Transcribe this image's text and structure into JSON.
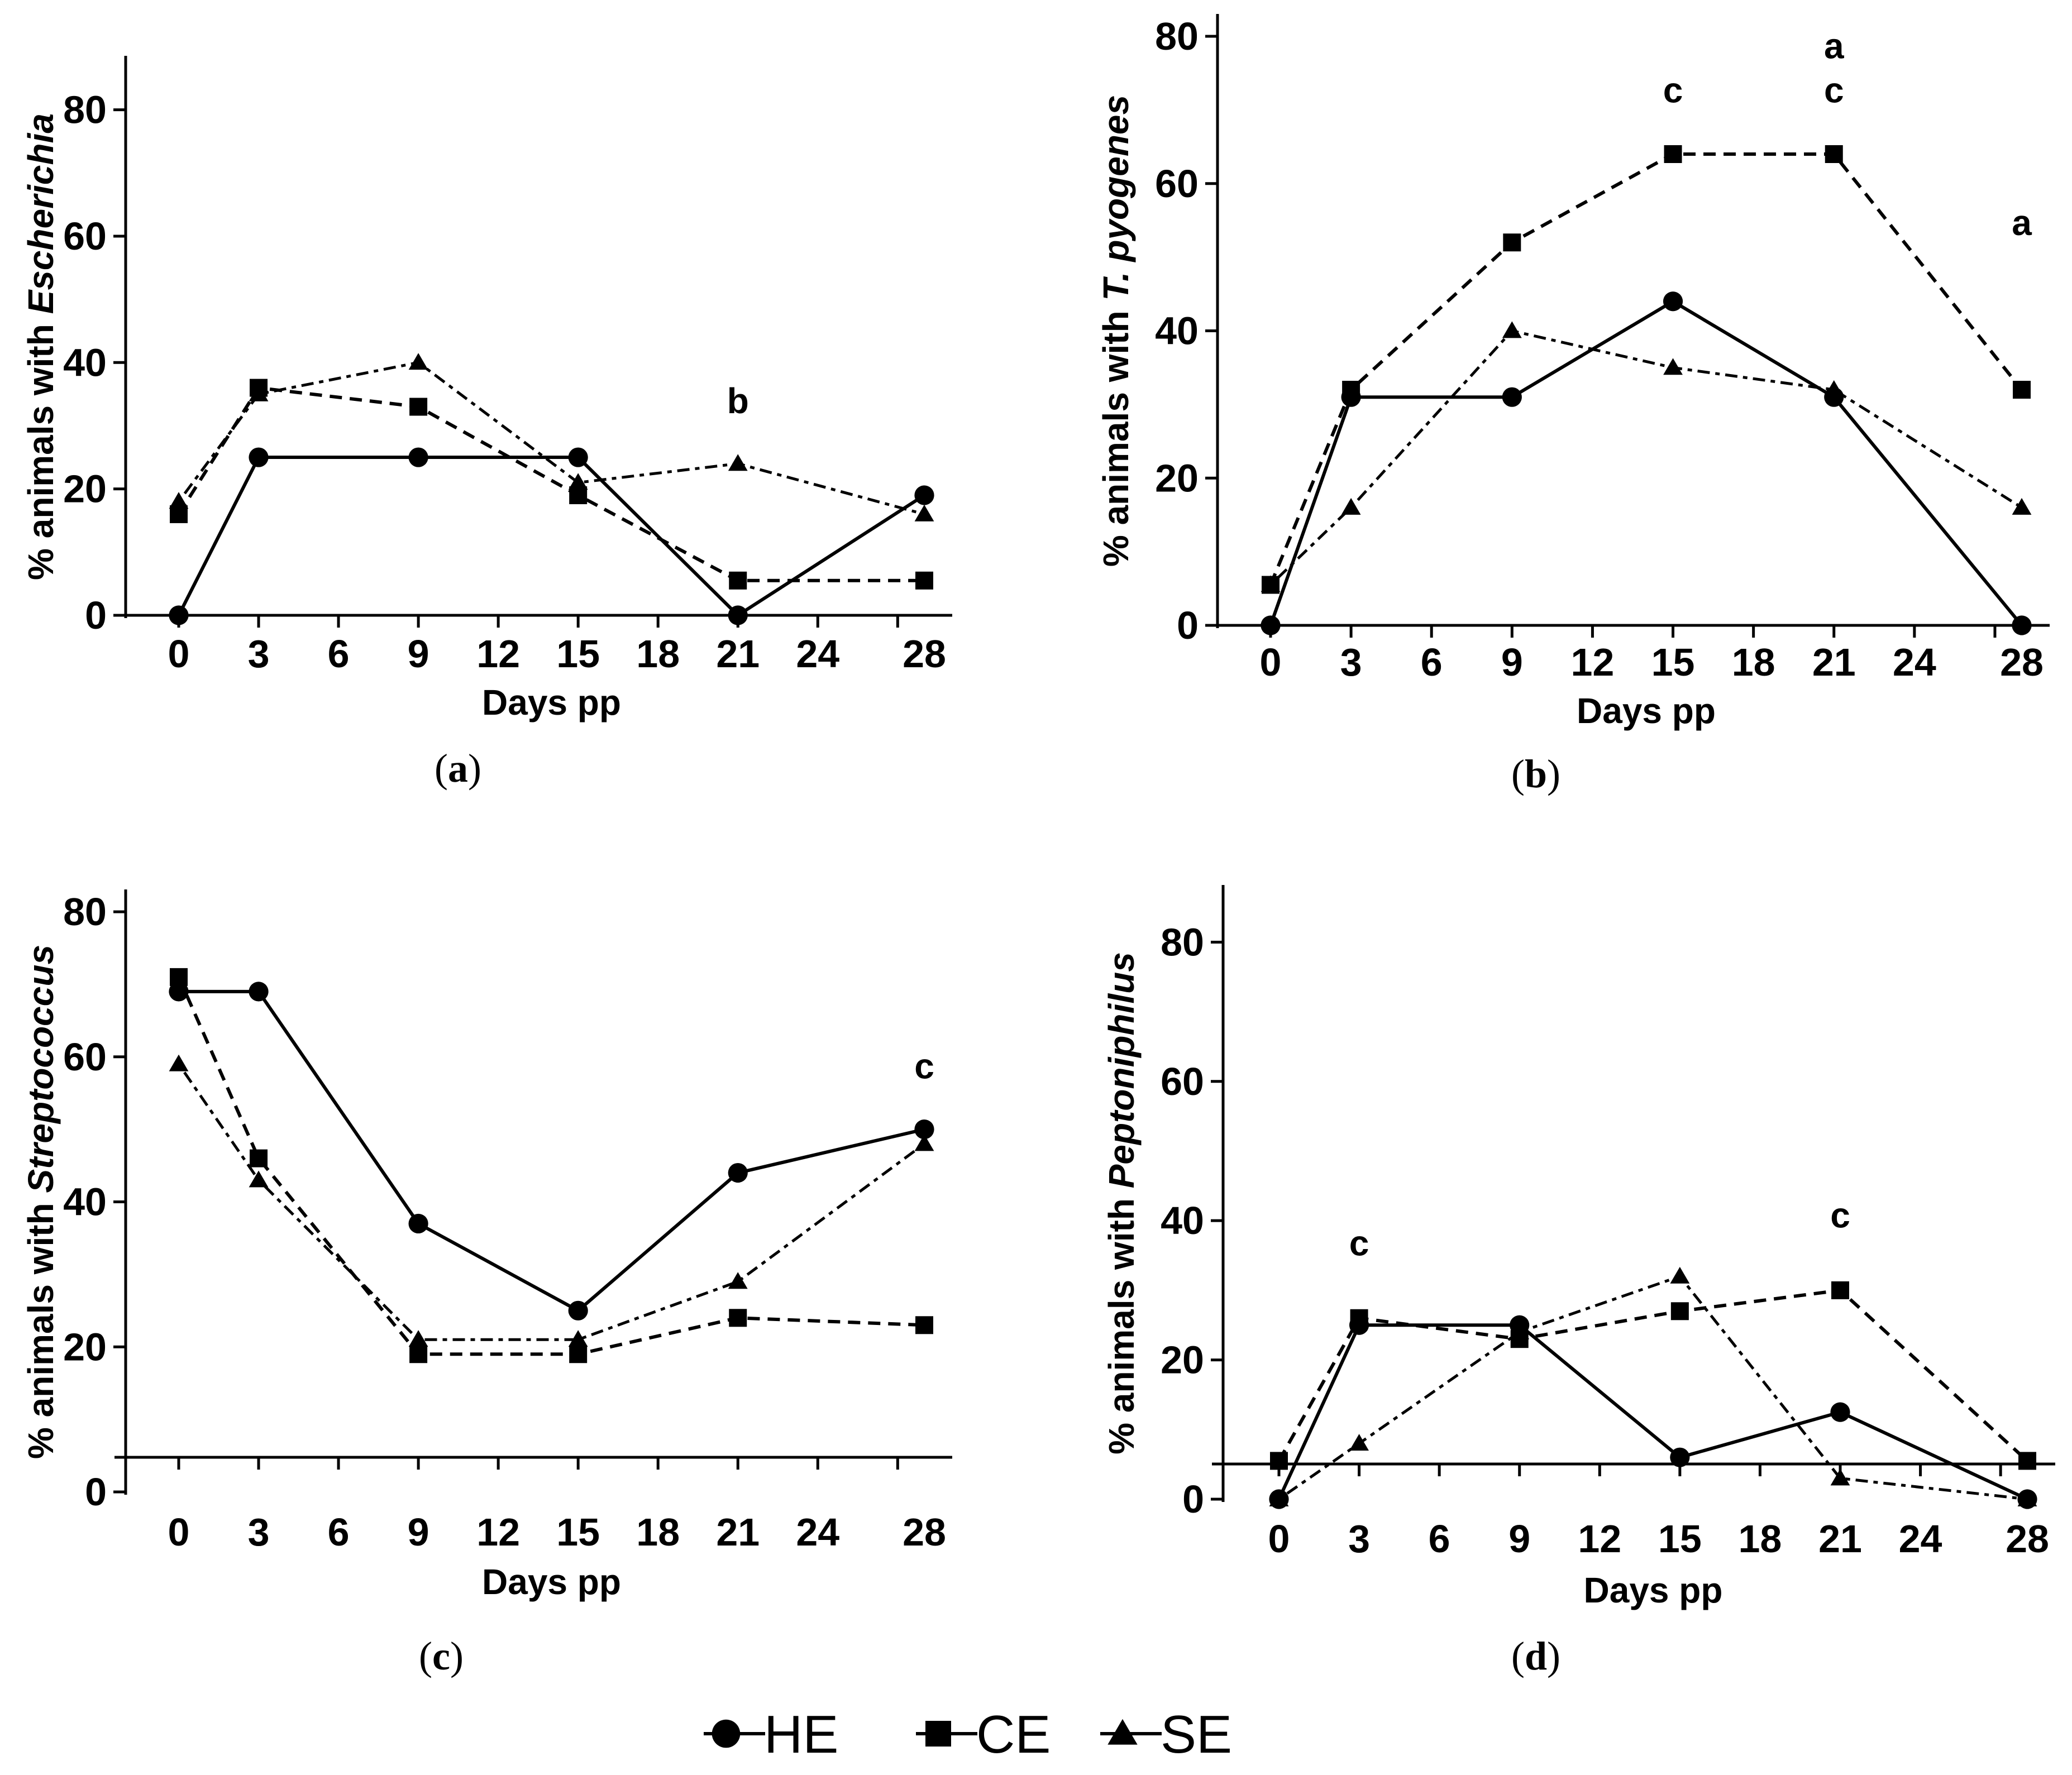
{
  "legend": [
    {
      "label": "HE",
      "marker": "circle"
    },
    {
      "label": "CE",
      "marker": "square"
    },
    {
      "label": "SE",
      "marker": "triangle"
    }
  ],
  "chart_data": [
    {
      "type": "line",
      "panel_label": "(a)",
      "ylabel_prefix": "% animals with ",
      "ylabel_species": "Escherichia",
      "xlabel": "Days pp",
      "x_ticks": [
        0,
        3,
        6,
        9,
        12,
        15,
        18,
        21,
        24,
        28
      ],
      "y_ticks": [
        0,
        20,
        40,
        60,
        80
      ],
      "ylim": [
        0,
        85
      ],
      "series": [
        {
          "name": "HE",
          "x": [
            0,
            3,
            9,
            15,
            21,
            28
          ],
          "values": [
            0,
            25,
            25,
            25,
            0,
            19
          ]
        },
        {
          "name": "CE",
          "x": [
            0,
            3,
            9,
            15,
            21,
            28
          ],
          "values": [
            16,
            36,
            33,
            19,
            5.5,
            5.5
          ]
        },
        {
          "name": "SE",
          "x": [
            0,
            3,
            9,
            15,
            21,
            28
          ],
          "values": [
            18,
            35,
            40,
            21,
            24,
            16
          ]
        }
      ],
      "annotations": [
        {
          "x": 21,
          "y": 32,
          "text": "b"
        }
      ]
    },
    {
      "type": "line",
      "panel_label": "(b)",
      "ylabel_prefix": "% animals with ",
      "ylabel_species": "T. pyogenes",
      "xlabel": "Days pp",
      "x_ticks": [
        0,
        3,
        6,
        9,
        12,
        15,
        18,
        21,
        24,
        28
      ],
      "y_ticks": [
        0,
        20,
        40,
        60,
        80
      ],
      "ylim": [
        0,
        80
      ],
      "series": [
        {
          "name": "HE",
          "x": [
            0,
            3,
            9,
            15,
            21,
            28
          ],
          "values": [
            0,
            31,
            31,
            44,
            31,
            0
          ]
        },
        {
          "name": "CE",
          "x": [
            0,
            3,
            9,
            15,
            21,
            28
          ],
          "values": [
            5.5,
            32,
            52,
            64,
            64,
            32
          ]
        },
        {
          "name": "SE",
          "x": [
            0,
            3,
            9,
            15,
            21,
            28
          ],
          "values": [
            5.5,
            16,
            40,
            35,
            32,
            16
          ]
        }
      ],
      "annotations": [
        {
          "x": 15,
          "y": 71,
          "text": "c"
        },
        {
          "x": 21,
          "y": 71,
          "text": "c"
        },
        {
          "x": 21,
          "y": 77,
          "text": "a"
        },
        {
          "x": 28,
          "y": 53,
          "text": "a"
        }
      ]
    },
    {
      "type": "line",
      "panel_label": "(c)",
      "ylabel_prefix": "% animals with ",
      "ylabel_species": "Streptococcus",
      "xlabel": "Days pp",
      "x_ticks": [
        0,
        3,
        6,
        9,
        12,
        15,
        18,
        21,
        24,
        28
      ],
      "y_ticks": [
        0,
        20,
        40,
        60,
        80
      ],
      "ylim": [
        0,
        80
      ],
      "series": [
        {
          "name": "HE",
          "x": [
            0,
            3,
            9,
            15,
            21,
            28
          ],
          "values": [
            69,
            69,
            37,
            25,
            44,
            50
          ]
        },
        {
          "name": "CE",
          "x": [
            0,
            3,
            9,
            15,
            21,
            28
          ],
          "values": [
            71,
            46,
            19,
            19,
            24,
            23
          ]
        },
        {
          "name": "SE",
          "x": [
            0,
            3,
            9,
            15,
            21,
            28
          ],
          "values": [
            59,
            43,
            21,
            21,
            29,
            48
          ]
        }
      ],
      "annotations": [
        {
          "x": 28,
          "y": 57,
          "text": "c"
        }
      ]
    },
    {
      "type": "line",
      "panel_label": "(d)",
      "ylabel_prefix": "% animals with ",
      "ylabel_species": "Peptoniphilus",
      "xlabel": "Days pp",
      "x_ticks": [
        0,
        3,
        6,
        9,
        12,
        15,
        18,
        21,
        24,
        28
      ],
      "y_ticks": [
        0,
        20,
        40,
        60,
        80
      ],
      "ylim": [
        0,
        85
      ],
      "series": [
        {
          "name": "HE",
          "x": [
            0,
            3,
            9,
            15,
            21,
            28
          ],
          "values": [
            0,
            25,
            25,
            6,
            12.5,
            0
          ]
        },
        {
          "name": "CE",
          "x": [
            0,
            3,
            9,
            15,
            21,
            28
          ],
          "values": [
            5.5,
            26,
            23,
            27,
            30,
            5.5
          ]
        },
        {
          "name": "SE",
          "x": [
            0,
            3,
            9,
            15,
            21,
            28
          ],
          "values": [
            0,
            8,
            24,
            32,
            3,
            0
          ]
        }
      ],
      "annotations": [
        {
          "x": 3,
          "y": 35,
          "text": "c"
        },
        {
          "x": 21,
          "y": 39,
          "text": "c"
        }
      ]
    }
  ]
}
